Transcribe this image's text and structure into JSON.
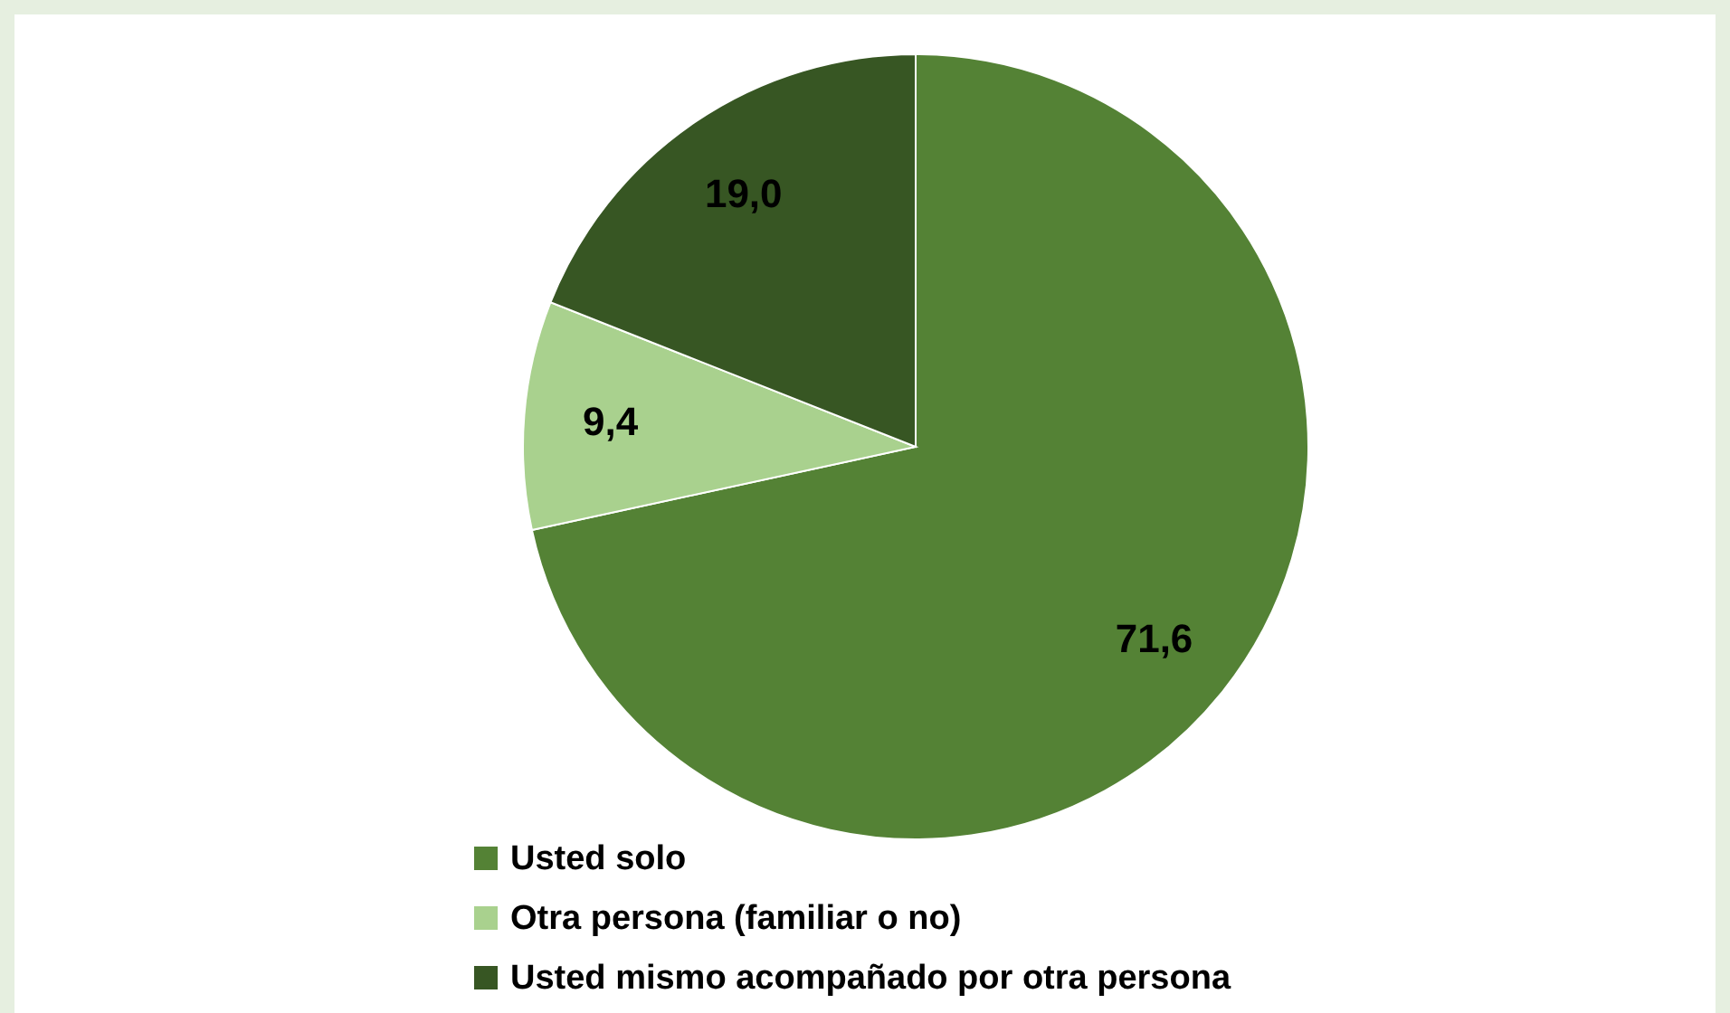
{
  "chart_data": {
    "type": "pie",
    "categories": [
      "Usted solo",
      "Otra persona (familiar o no)",
      "Usted mismo acompañado por otra persona"
    ],
    "values": [
      71.6,
      9.4,
      19.0
    ],
    "colors": [
      "#548235",
      "#a9d18e",
      "#375623"
    ],
    "value_labels": [
      "71,6",
      "9,4",
      "19,0"
    ],
    "legend": "bottom"
  }
}
